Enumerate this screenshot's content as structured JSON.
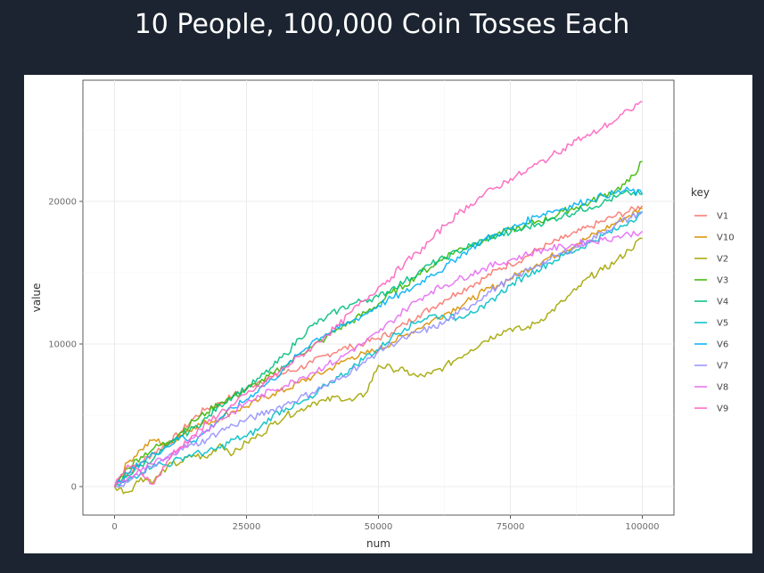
{
  "slide": {
    "title": "10 People, 100,000 Coin Tosses Each"
  },
  "chart_data": {
    "type": "line",
    "title": "",
    "xlabel": "num",
    "ylabel": "value",
    "xlim": [
      -6000,
      106000
    ],
    "ylim": [
      -2000,
      28500
    ],
    "x_ticks": [
      0,
      25000,
      50000,
      75000,
      100000
    ],
    "x_tick_labels": [
      "0",
      "25000",
      "50000",
      "75000",
      "100000"
    ],
    "y_ticks": [
      0,
      10000,
      20000
    ],
    "y_tick_labels": [
      "0",
      "10000",
      "20000"
    ],
    "grid": true,
    "legend": {
      "title": "key",
      "position": "right"
    },
    "x": [
      0,
      2500,
      5000,
      7500,
      10000,
      12500,
      15000,
      17500,
      20000,
      22500,
      25000,
      27500,
      30000,
      32500,
      35000,
      37500,
      40000,
      42500,
      45000,
      47500,
      50000,
      52500,
      55000,
      57500,
      60000,
      62500,
      65000,
      67500,
      70000,
      72500,
      75000,
      77500,
      80000,
      82500,
      85000,
      87500,
      90000,
      92500,
      95000,
      97500,
      100000
    ],
    "series": [
      {
        "name": "V1",
        "color": "#F8766D",
        "values": [
          0,
          900,
          1700,
          2400,
          3000,
          3800,
          4800,
          5500,
          5800,
          6400,
          6900,
          7400,
          7700,
          8000,
          8300,
          8700,
          9200,
          9600,
          9800,
          10100,
          10400,
          10800,
          11400,
          12000,
          12500,
          13100,
          13600,
          14100,
          14600,
          15200,
          15600,
          16000,
          16600,
          17000,
          17400,
          17800,
          18200,
          18600,
          19000,
          19300,
          19700
        ]
      },
      {
        "name": "V10",
        "color": "#D89000",
        "values": [
          0,
          1700,
          2600,
          3300,
          2900,
          3600,
          4200,
          4500,
          4800,
          5300,
          5600,
          6100,
          6500,
          6800,
          7300,
          7700,
          8100,
          8600,
          9100,
          9300,
          9600,
          10100,
          10600,
          11100,
          11600,
          12100,
          12600,
          13100,
          13700,
          14100,
          14600,
          15100,
          15600,
          16100,
          16500,
          17000,
          17500,
          18000,
          18500,
          19000,
          19500
        ]
      },
      {
        "name": "V2",
        "color": "#A3A500",
        "values": [
          0,
          -400,
          600,
          400,
          1400,
          1700,
          2200,
          2000,
          3000,
          2300,
          3100,
          3600,
          4400,
          5000,
          5300,
          5900,
          6000,
          6300,
          6000,
          6500,
          8500,
          8300,
          8100,
          7700,
          7900,
          8400,
          9000,
          9600,
          10200,
          10700,
          11100,
          11000,
          11500,
          12200,
          13000,
          13800,
          14700,
          15200,
          15800,
          16600,
          17400
        ]
      },
      {
        "name": "V3",
        "color": "#39B600",
        "values": [
          0,
          1300,
          2100,
          2700,
          3100,
          3800,
          4600,
          5200,
          5900,
          6300,
          6800,
          7300,
          7900,
          8500,
          9300,
          9800,
          10400,
          11100,
          11600,
          12200,
          12800,
          13600,
          14100,
          14900,
          15400,
          16100,
          16600,
          16900,
          17300,
          17700,
          18000,
          18200,
          18600,
          18800,
          19300,
          19600,
          19900,
          20400,
          20800,
          21400,
          22800
        ]
      },
      {
        "name": "V4",
        "color": "#00BF7D",
        "values": [
          0,
          800,
          1500,
          2000,
          2800,
          3500,
          4100,
          4800,
          5700,
          6400,
          6900,
          7600,
          8400,
          9300,
          10400,
          11300,
          11800,
          12400,
          12800,
          13100,
          13300,
          13900,
          14400,
          15000,
          15600,
          16000,
          16500,
          16900,
          17300,
          17600,
          17800,
          18100,
          18400,
          18700,
          19000,
          19300,
          19600,
          19900,
          20300,
          20600,
          20500
        ]
      },
      {
        "name": "V5",
        "color": "#00BFC4",
        "values": [
          0,
          400,
          1000,
          1600,
          1500,
          2000,
          2300,
          2400,
          2700,
          3300,
          3500,
          4100,
          5000,
          5500,
          5800,
          6200,
          7100,
          7700,
          8300,
          9100,
          9600,
          10500,
          11100,
          11600,
          12000,
          11900,
          11800,
          12300,
          12500,
          13400,
          14100,
          14700,
          15200,
          15700,
          16200,
          16600,
          17100,
          17600,
          18000,
          18600,
          19200
        ]
      },
      {
        "name": "V6",
        "color": "#00B0F6",
        "values": [
          0,
          900,
          1700,
          2300,
          2800,
          3500,
          3200,
          3900,
          4800,
          5500,
          6100,
          6900,
          7500,
          8400,
          9300,
          10200,
          10700,
          11100,
          11600,
          12100,
          12700,
          13200,
          13600,
          14200,
          14900,
          15300,
          16100,
          16700,
          17300,
          17700,
          18100,
          18500,
          19000,
          19300,
          19500,
          19800,
          20100,
          20400,
          20600,
          20800,
          20500
        ]
      },
      {
        "name": "V7",
        "color": "#9590FF",
        "values": [
          0,
          300,
          900,
          1400,
          2000,
          2700,
          2900,
          3300,
          3900,
          4300,
          4700,
          5000,
          5400,
          5800,
          6200,
          6600,
          7100,
          7500,
          8200,
          8700,
          9500,
          10000,
          10400,
          10800,
          11100,
          11500,
          12100,
          12700,
          13400,
          14000,
          14500,
          15000,
          15500,
          15900,
          16400,
          16800,
          17300,
          17800,
          18400,
          18800,
          19300
        ]
      },
      {
        "name": "V8",
        "color": "#E76BF3",
        "values": [
          0,
          600,
          1100,
          1600,
          2100,
          2700,
          3400,
          4000,
          4700,
          5200,
          5900,
          6300,
          6800,
          7100,
          7600,
          8000,
          8500,
          8900,
          9600,
          10100,
          10800,
          11600,
          12400,
          13100,
          13700,
          14100,
          14500,
          14900,
          15300,
          15600,
          15900,
          16200,
          16500,
          16700,
          16800,
          17000,
          17200,
          17300,
          17500,
          17700,
          17900
        ]
      },
      {
        "name": "V9",
        "color": "#FF62BC",
        "values": [
          0,
          1500,
          1000,
          200,
          1800,
          2800,
          3600,
          4400,
          5200,
          5700,
          6500,
          7000,
          7700,
          8400,
          9100,
          9800,
          10600,
          11300,
          12300,
          13100,
          14000,
          14700,
          15700,
          16400,
          17300,
          18300,
          19100,
          19800,
          20500,
          21000,
          21600,
          22000,
          22600,
          23100,
          23700,
          24300,
          24600,
          25200,
          25700,
          26400,
          27000
        ]
      }
    ]
  }
}
